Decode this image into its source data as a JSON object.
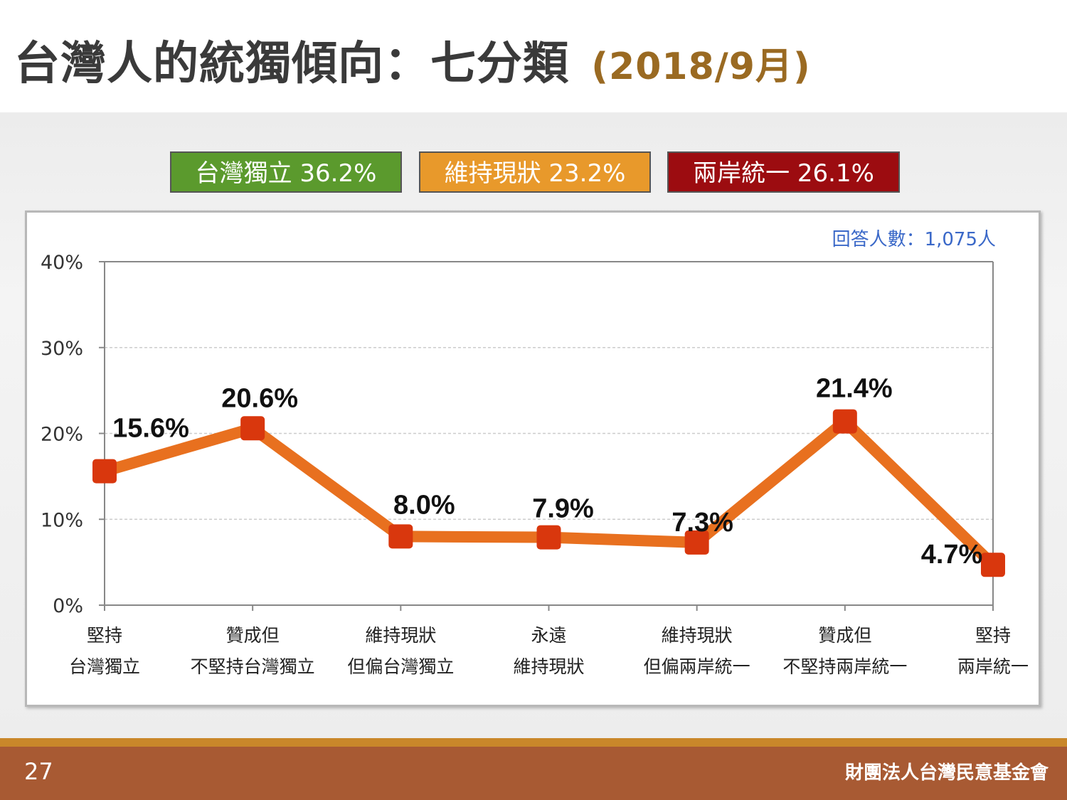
{
  "page": {
    "title": "台灣人的統獨傾向：七分類",
    "title_date": "(2018/9月)",
    "page_number": "27",
    "organization": "財團法人台灣民意基金會"
  },
  "legend": [
    {
      "label": "台灣獨立 36.2%",
      "color": "#5b9a2d"
    },
    {
      "label": "維持現狀 23.2%",
      "color": "#e8992b"
    },
    {
      "label": "兩岸統一 26.1%",
      "color": "#9c0c10"
    }
  ],
  "respondents": "回答人數：1,075人",
  "colors": {
    "line": "#e8701f",
    "marker": "#d9370d",
    "axis": "#888888",
    "grid": "#cccccc"
  },
  "chart_data": {
    "type": "line",
    "categories": [
      [
        "堅持",
        "台灣獨立"
      ],
      [
        "贊成但",
        "不堅持台灣獨立"
      ],
      [
        "維持現狀",
        "但偏台灣獨立"
      ],
      [
        "永遠",
        "維持現狀"
      ],
      [
        "維持現狀",
        "但偏兩岸統一"
      ],
      [
        "贊成但",
        "不堅持兩岸統一"
      ],
      [
        "堅持",
        "兩岸統一"
      ]
    ],
    "values": [
      15.6,
      20.6,
      8.0,
      7.9,
      7.3,
      21.4,
      4.7
    ],
    "data_labels": [
      "15.6%",
      "20.6%",
      "8.0%",
      "7.9%",
      "7.3%",
      "21.4%",
      "4.7%"
    ],
    "y_ticks": [
      0,
      10,
      20,
      30,
      40
    ],
    "y_tick_labels": [
      "0%",
      "10%",
      "20%",
      "30%",
      "40%"
    ],
    "ylim": [
      0,
      40
    ],
    "grid": true,
    "title": "",
    "xlabel": "",
    "ylabel": ""
  }
}
